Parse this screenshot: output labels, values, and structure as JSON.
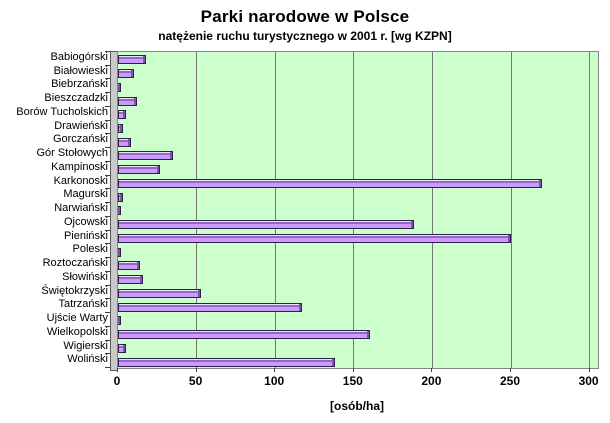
{
  "chart_data": {
    "type": "bar",
    "orientation": "horizontal",
    "title": "Parki narodowe w Polsce",
    "subtitle": "natężenie ruchu turystycznego w 2001 r. [wg KZPN]",
    "xlabel": "[osób/ha]",
    "xlim": [
      0,
      300
    ],
    "xticks": [
      0,
      50,
      100,
      150,
      200,
      250,
      300
    ],
    "grid": true,
    "legend": "none",
    "categories": [
      "Babiogórski",
      "Białowieski",
      "Biebrzański",
      "Bieszczadzki",
      "Borów Tucholskich",
      "Drawieński",
      "Gorczański",
      "Gór Stołowych",
      "Kampinoski",
      "Karkonoski",
      "Magurski",
      "Narwiański",
      "Ojcowski",
      "Pieniński",
      "Poleski",
      "Roztoczański",
      "Słowiński",
      "Świętokrzyski",
      "Tatrzański",
      "Ujście Warty",
      "Wielkopolski",
      "Wigierski",
      "Woliński"
    ],
    "values": [
      18,
      10,
      2,
      12,
      5,
      3,
      8,
      35,
      27,
      270,
      3,
      2,
      188,
      250,
      2,
      14,
      16,
      53,
      117,
      2,
      160,
      5,
      138
    ],
    "colors": {
      "plot_bg": "#CCFFCC",
      "gridline": "#777777",
      "bar_body": "#CC99FF",
      "bar_band": "#8E6BBE",
      "bar_highlight": "#EFE0FF",
      "bar_cap": "#7A57A8",
      "bar_outline": "#2E1F47",
      "wall": "#C9C9C9"
    }
  }
}
